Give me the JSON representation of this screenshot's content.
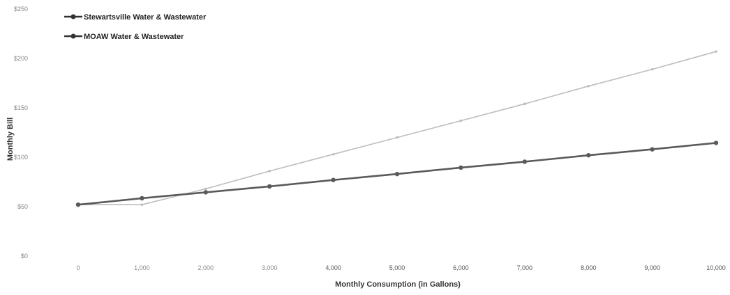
{
  "chart_data": {
    "type": "line",
    "xlabel": "Monthly Consumption (in Gallons)",
    "ylabel": "Monthly Bill",
    "ylim": [
      0,
      250
    ],
    "xlim": [
      0,
      10000
    ],
    "y_ticks": [
      "$0",
      "$50",
      "$100",
      "$150",
      "$200",
      "$250"
    ],
    "x_tick_labels": [
      "0",
      "1,000",
      "2,000",
      "3,000",
      "4,000",
      "5,000",
      "6,000",
      "7,000",
      "8,000",
      "9,000",
      "10,000"
    ],
    "x": [
      0,
      1000,
      2000,
      3000,
      4000,
      5000,
      6000,
      7000,
      8000,
      9000,
      10000
    ],
    "legend_position": "top-left",
    "grid": false,
    "series": [
      {
        "name": "Stewartsville Water & Wastewater",
        "color": "#bdbdbd",
        "values": [
          52,
          52,
          68,
          86,
          103,
          120,
          137,
          154,
          172,
          189,
          207
        ]
      },
      {
        "name": "MOAW Water & Wastewater",
        "color": "#5a5a5a",
        "values": [
          52,
          58.5,
          64.5,
          70.5,
          77,
          83,
          89.5,
          95.5,
          102,
          108,
          114.5
        ]
      }
    ]
  }
}
